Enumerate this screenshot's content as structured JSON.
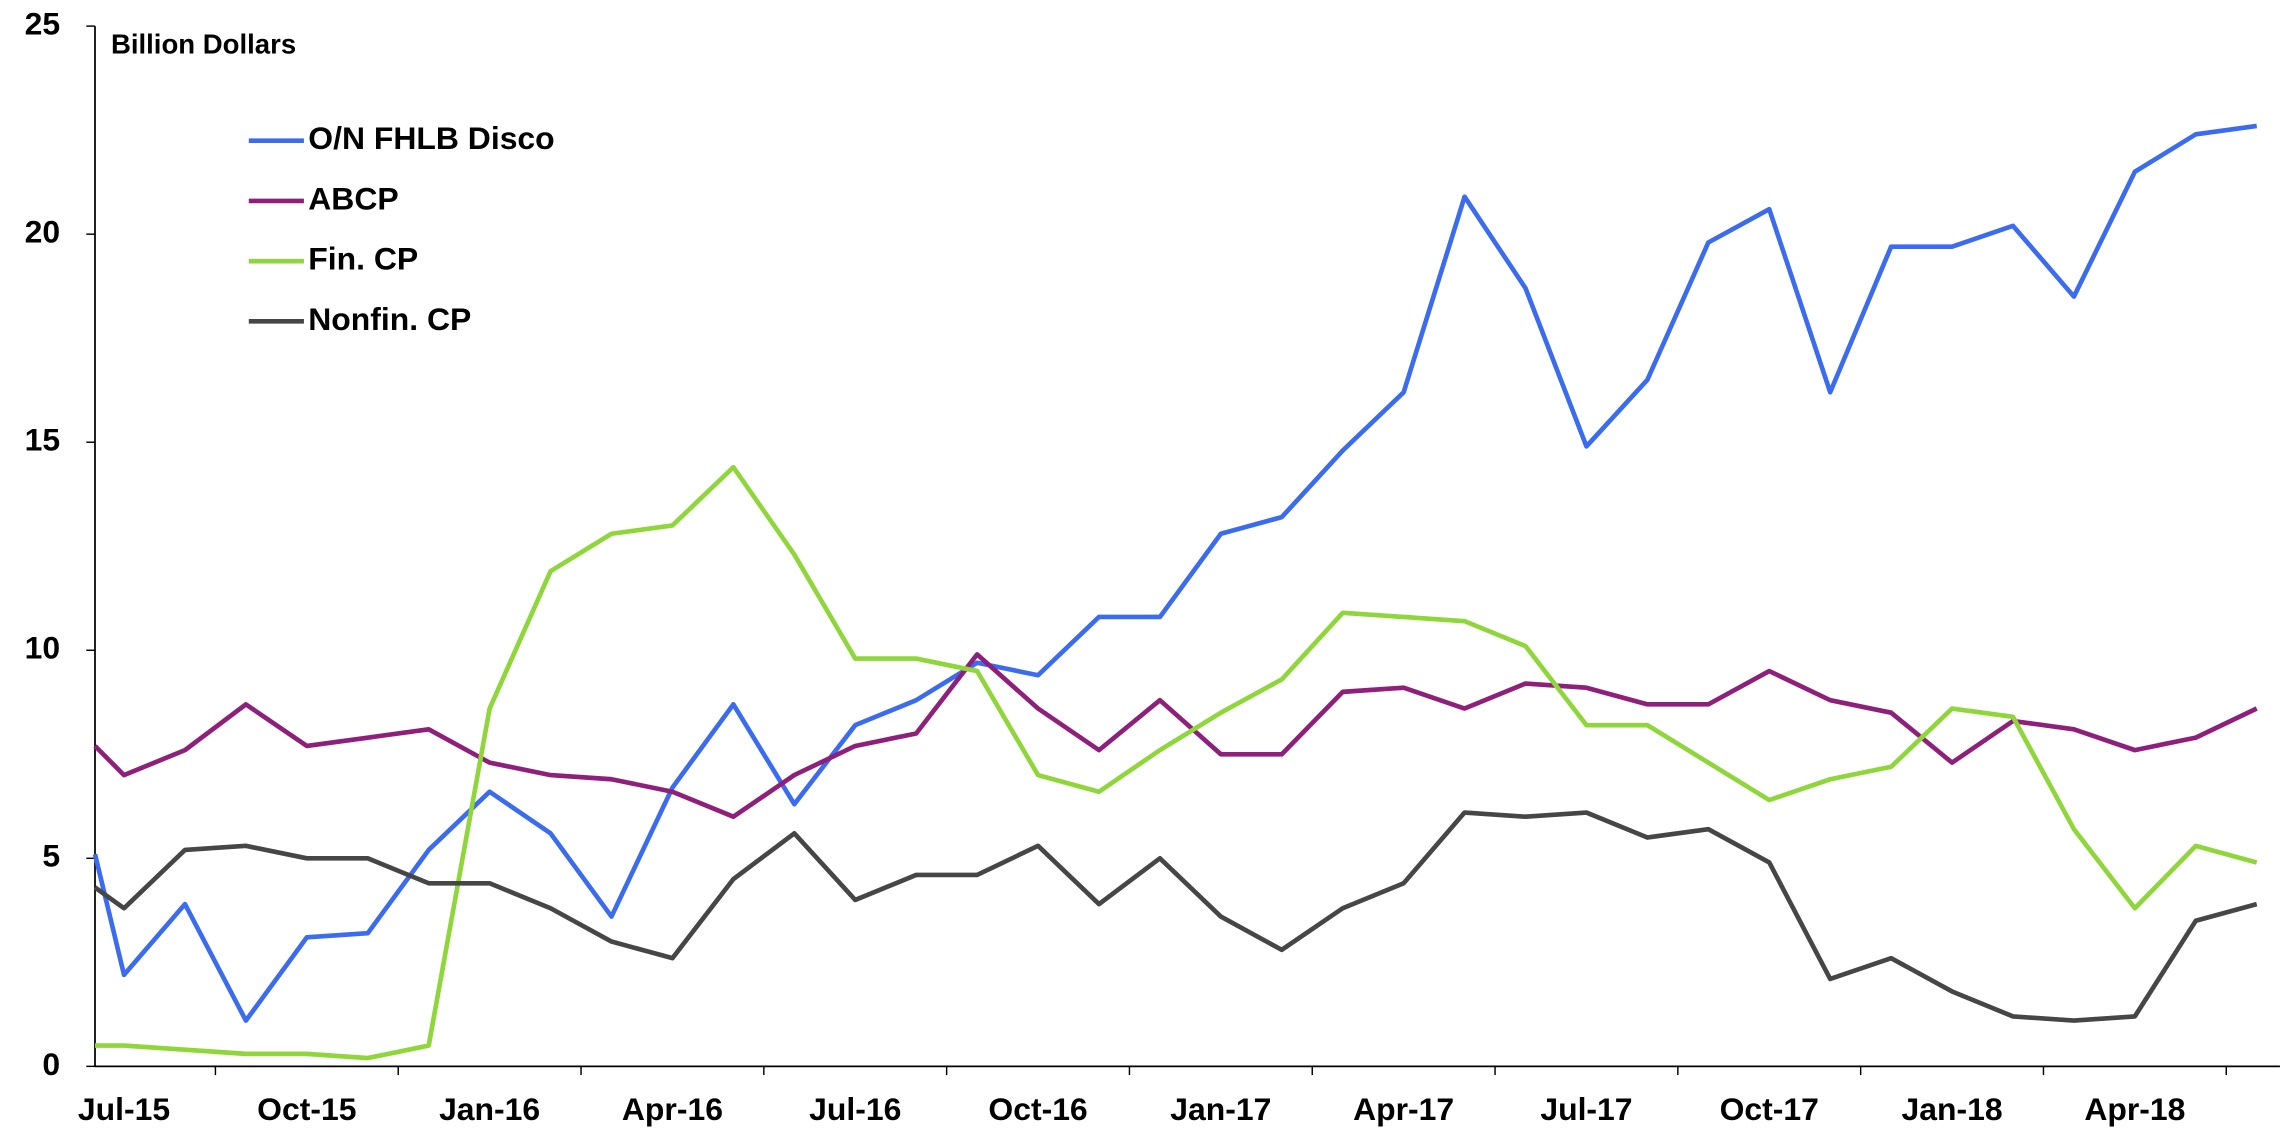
{
  "chart_data": {
    "type": "line",
    "annotation": "Billion Dollars",
    "categories": [
      null,
      "Jul-15",
      null,
      null,
      "Oct-15",
      null,
      null,
      "Jan-16",
      null,
      null,
      "Apr-16",
      null,
      null,
      "Jul-16",
      null,
      null,
      "Oct-16",
      null,
      null,
      "Jan-17",
      null,
      null,
      "Apr-17",
      null,
      null,
      "Jul-17",
      null,
      null,
      "Oct-17",
      null,
      null,
      "Jan-18",
      null,
      null,
      "Apr-18",
      null,
      null
    ],
    "series": [
      {
        "name": "O/N FHLB Disco",
        "color": "#3b6cf0",
        "values": [
          5.1,
          2.2,
          3.9,
          1.1,
          3.1,
          3.2,
          5.2,
          6.6,
          5.6,
          3.6,
          6.7,
          8.7,
          6.3,
          8.2,
          8.8,
          9.7,
          9.4,
          10.8,
          10.8,
          12.8,
          13.2,
          14.8,
          16.2,
          20.9,
          18.7,
          14.9,
          16.5,
          19.8,
          20.6,
          16.2,
          19.7,
          19.7,
          20.2,
          18.5,
          21.5,
          22.4,
          22.6
        ]
      },
      {
        "name": "ABCP",
        "color": "#8e1f7a",
        "values": [
          7.7,
          7.0,
          7.6,
          8.7,
          7.7,
          7.9,
          8.1,
          7.3,
          7.0,
          6.9,
          6.6,
          6.0,
          7.0,
          7.7,
          8.0,
          9.9,
          8.6,
          7.6,
          8.8,
          7.5,
          7.5,
          9.0,
          9.1,
          8.6,
          9.2,
          9.1,
          8.7,
          8.7,
          9.5,
          8.8,
          8.5,
          7.3,
          8.3,
          8.1,
          7.6,
          7.9,
          8.6
        ]
      },
      {
        "name": "Fin. CP",
        "color": "#8fd63a",
        "values": [
          0.5,
          0.5,
          0.4,
          0.3,
          0.3,
          0.2,
          0.5,
          8.6,
          11.9,
          12.8,
          13.0,
          14.4,
          12.3,
          9.8,
          9.8,
          9.5,
          7.0,
          6.6,
          7.6,
          8.5,
          9.3,
          10.9,
          10.8,
          10.7,
          10.1,
          8.2,
          8.2,
          7.3,
          6.4,
          6.9,
          7.2,
          8.6,
          8.4,
          5.7,
          3.8,
          5.3,
          4.9
        ]
      },
      {
        "name": "Nonfin. CP",
        "color": "#464646",
        "values": [
          4.3,
          3.8,
          5.2,
          5.3,
          5.0,
          5.0,
          4.4,
          4.4,
          3.8,
          3.0,
          2.6,
          4.5,
          5.6,
          4.0,
          4.6,
          4.6,
          5.3,
          3.9,
          5.0,
          3.6,
          2.8,
          3.8,
          4.4,
          6.1,
          6.0,
          6.1,
          5.5,
          5.7,
          4.9,
          2.1,
          2.6,
          1.8,
          1.2,
          1.1,
          1.2,
          3.5,
          3.9
        ]
      }
    ],
    "ylim": [
      0,
      25
    ],
    "yticks": [
      0,
      5,
      10,
      15,
      20,
      25
    ]
  }
}
